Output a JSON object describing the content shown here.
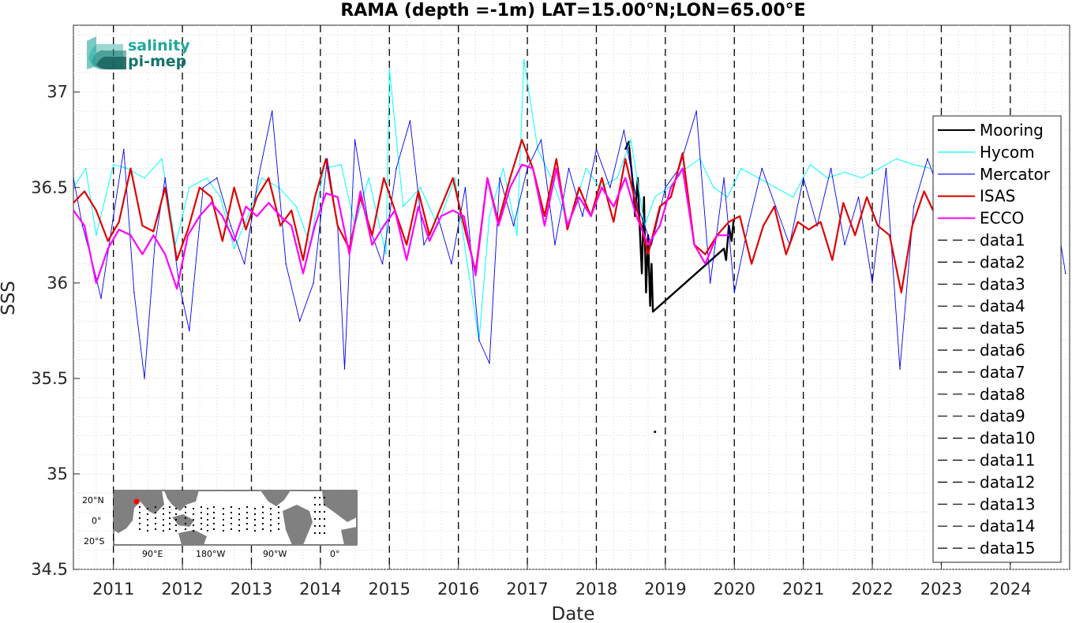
{
  "chart_data": {
    "type": "line",
    "title": "RAMA (depth =-1m) LAT=15.00°N;LON=65.00°E",
    "xlabel": "Date",
    "ylabel": "SSS",
    "xlim": [
      2010.42,
      2024.86
    ],
    "ylim": [
      34.5,
      37.35
    ],
    "grid": true,
    "x_ticks": [
      2011,
      2012,
      2013,
      2014,
      2015,
      2016,
      2017,
      2018,
      2019,
      2020,
      2021,
      2022,
      2023,
      2024
    ],
    "x_tick_labels": [
      "2011",
      "2012",
      "2013",
      "2014",
      "2015",
      "2016",
      "2017",
      "2018",
      "2019",
      "2020",
      "2021",
      "2022",
      "2023",
      "2024"
    ],
    "y_ticks": [
      34.5,
      35,
      35.5,
      36,
      36.5,
      37
    ],
    "y_tick_labels": [
      "34.5",
      "35",
      "35.5",
      "36",
      "36.5",
      "37"
    ],
    "legend_position": "right",
    "series": [
      {
        "name": "Mooring",
        "color": "#000000",
        "x": [
          2018.42,
          2018.47,
          2018.5,
          2018.53,
          2018.56,
          2018.6,
          2018.63,
          2018.66,
          2018.69,
          2018.72,
          2018.75,
          2018.78,
          2018.8,
          2018.82,
          2019.85,
          2019.88,
          2019.92,
          2019.96,
          2019.99
        ],
        "y": [
          36.7,
          36.74,
          36.62,
          36.52,
          36.35,
          36.55,
          36.28,
          36.05,
          36.45,
          35.95,
          36.25,
          35.88,
          36.1,
          35.85,
          36.18,
          36.12,
          36.3,
          36.22,
          36.33
        ]
      },
      {
        "name": "Hycom",
        "color": "#00ffff",
        "x": [
          2010.42,
          2010.6,
          2010.75,
          2011.0,
          2011.2,
          2011.45,
          2011.7,
          2011.9,
          2012.1,
          2012.35,
          2012.55,
          2012.75,
          2012.95,
          2013.15,
          2013.4,
          2013.65,
          2013.85,
          2014.05,
          2014.3,
          2014.5,
          2014.7,
          2014.95,
          2015.0,
          2015.2,
          2015.45,
          2015.7,
          2015.95,
          2016.15,
          2016.3,
          2016.45,
          2016.65,
          2016.85,
          2016.95,
          2017.15,
          2017.35,
          2017.6,
          2017.85,
          2018.05,
          2018.3,
          2018.5,
          2018.7,
          2018.85,
          2019.05,
          2019.3,
          2019.5,
          2019.7,
          2019.9,
          2020.1,
          2020.35,
          2020.6,
          2020.85,
          2021.1,
          2021.35,
          2021.6,
          2021.85,
          2022.1,
          2022.35,
          2022.6,
          2022.85
        ],
        "y": [
          36.5,
          36.6,
          36.25,
          36.62,
          36.6,
          36.55,
          36.65,
          36.2,
          36.5,
          36.55,
          36.45,
          36.18,
          36.35,
          36.55,
          36.5,
          36.4,
          36.2,
          36.6,
          36.62,
          36.3,
          36.55,
          36.15,
          37.12,
          36.4,
          36.5,
          36.3,
          36.55,
          36.05,
          35.7,
          36.35,
          36.6,
          36.25,
          37.17,
          36.7,
          36.55,
          36.3,
          36.6,
          36.5,
          36.55,
          36.75,
          36.3,
          36.45,
          36.5,
          36.6,
          36.65,
          36.5,
          36.45,
          36.6,
          36.55,
          36.5,
          36.45,
          36.62,
          36.55,
          36.58,
          36.55,
          36.6,
          36.65,
          36.62,
          36.6
        ]
      },
      {
        "name": "Mercator",
        "color": "#0000ee",
        "x": [
          2010.42,
          2010.55,
          2010.7,
          2010.82,
          2011.0,
          2011.15,
          2011.3,
          2011.45,
          2011.6,
          2011.75,
          2011.95,
          2012.1,
          2012.3,
          2012.5,
          2012.7,
          2012.9,
          2013.1,
          2013.3,
          2013.5,
          2013.7,
          2013.9,
          2014.1,
          2014.25,
          2014.35,
          2014.5,
          2014.7,
          2014.9,
          2015.1,
          2015.3,
          2015.5,
          2015.7,
          2015.9,
          2016.1,
          2016.3,
          2016.45,
          2016.6,
          2016.8,
          2017.0,
          2017.2,
          2017.4,
          2017.6,
          2017.8,
          2018.0,
          2018.2,
          2018.4,
          2018.6,
          2018.8,
          2019.0,
          2019.2,
          2019.45,
          2019.65,
          2019.85,
          2020.0,
          2020.2,
          2020.4,
          2020.6,
          2020.8,
          2021.0,
          2021.2,
          2021.4,
          2021.6,
          2021.8,
          2022.0,
          2022.2,
          2022.4,
          2022.6,
          2022.8,
          2023.0,
          2023.2,
          2023.4,
          2023.6,
          2023.8,
          2024.0,
          2024.2,
          2024.4,
          2024.6,
          2024.8
        ],
        "y": [
          36.55,
          36.3,
          36.1,
          35.92,
          36.35,
          36.7,
          35.95,
          35.5,
          36.2,
          36.55,
          36.0,
          35.75,
          36.5,
          36.55,
          36.3,
          36.1,
          36.55,
          36.9,
          36.1,
          35.8,
          36.0,
          36.65,
          36.3,
          35.55,
          36.75,
          36.3,
          36.1,
          36.6,
          36.85,
          36.2,
          36.35,
          36.1,
          36.5,
          35.7,
          35.58,
          36.55,
          36.3,
          36.6,
          36.75,
          36.2,
          36.6,
          36.35,
          36.7,
          36.5,
          36.8,
          36.4,
          36.2,
          36.5,
          36.6,
          36.9,
          36.0,
          36.55,
          35.95,
          36.3,
          36.6,
          36.4,
          36.2,
          36.55,
          36.3,
          36.6,
          36.2,
          36.45,
          36.0,
          36.6,
          35.55,
          36.4,
          36.65,
          36.45,
          36.75,
          36.6,
          36.85,
          36.45,
          36.55,
          36.3,
          36.6,
          36.5,
          36.05
        ]
      },
      {
        "name": "ISAS",
        "color": "#e00000",
        "x": [
          2010.42,
          2010.58,
          2010.75,
          2010.92,
          2011.08,
          2011.25,
          2011.42,
          2011.58,
          2011.75,
          2011.92,
          2012.08,
          2012.25,
          2012.42,
          2012.58,
          2012.75,
          2012.92,
          2013.08,
          2013.25,
          2013.42,
          2013.58,
          2013.75,
          2013.92,
          2014.08,
          2014.25,
          2014.42,
          2014.58,
          2014.75,
          2014.92,
          2015.08,
          2015.25,
          2015.42,
          2015.58,
          2015.75,
          2015.92,
          2016.08,
          2016.25,
          2016.42,
          2016.58,
          2016.75,
          2016.92,
          2017.08,
          2017.25,
          2017.42,
          2017.58,
          2017.75,
          2017.92,
          2018.08,
          2018.25,
          2018.42,
          2018.58,
          2018.75,
          2018.92,
          2019.08,
          2019.25,
          2019.42,
          2019.58,
          2019.75,
          2019.92,
          2020.08,
          2020.25,
          2020.42,
          2020.58,
          2020.75,
          2020.92,
          2021.08,
          2021.25,
          2021.42,
          2021.58,
          2021.75,
          2021.92,
          2022.08,
          2022.25,
          2022.42,
          2022.58,
          2022.75,
          2022.92
        ],
        "y": [
          36.42,
          36.48,
          36.38,
          36.22,
          36.32,
          36.6,
          36.3,
          36.27,
          36.5,
          36.12,
          36.28,
          36.5,
          36.45,
          36.22,
          36.5,
          36.28,
          36.45,
          36.55,
          36.3,
          36.38,
          36.12,
          36.45,
          36.65,
          36.3,
          36.18,
          36.45,
          36.25,
          36.55,
          36.38,
          36.2,
          36.48,
          36.25,
          36.4,
          36.55,
          36.3,
          36.06,
          36.55,
          36.32,
          36.55,
          36.75,
          36.6,
          36.35,
          36.65,
          36.28,
          36.5,
          36.35,
          36.55,
          36.32,
          36.65,
          36.4,
          36.15,
          36.4,
          36.45,
          36.68,
          36.2,
          36.15,
          36.25,
          36.32,
          36.35,
          36.1,
          36.3,
          36.4,
          36.15,
          36.32,
          36.28,
          36.32,
          36.12,
          36.42,
          36.25,
          36.45,
          36.3,
          36.25,
          35.95,
          36.3,
          36.48,
          36.35
        ]
      },
      {
        "name": "ECCO",
        "color": "#ff00ff",
        "x": [
          2010.42,
          2010.58,
          2010.75,
          2010.92,
          2011.08,
          2011.25,
          2011.42,
          2011.58,
          2011.75,
          2011.92,
          2012.08,
          2012.25,
          2012.42,
          2012.58,
          2012.75,
          2012.92,
          2013.08,
          2013.25,
          2013.42,
          2013.58,
          2013.75,
          2013.92,
          2014.08,
          2014.25,
          2014.42,
          2014.58,
          2014.75,
          2014.92,
          2015.08,
          2015.25,
          2015.42,
          2015.58,
          2015.75,
          2015.92,
          2016.08,
          2016.25,
          2016.42,
          2016.58,
          2016.75,
          2016.92,
          2017.08,
          2017.25,
          2017.42,
          2017.58,
          2017.75,
          2017.92,
          2018.08,
          2018.25,
          2018.42,
          2018.58,
          2018.75,
          2018.92,
          2019.08,
          2019.25,
          2019.42,
          2019.58,
          2019.75,
          2019.92
        ],
        "y": [
          36.38,
          36.3,
          36.0,
          36.18,
          36.28,
          36.25,
          36.15,
          36.25,
          36.15,
          35.97,
          36.25,
          36.35,
          36.42,
          36.35,
          36.22,
          36.4,
          36.35,
          36.42,
          36.35,
          36.3,
          36.05,
          36.3,
          36.47,
          36.45,
          36.15,
          36.48,
          36.2,
          36.3,
          36.38,
          36.12,
          36.4,
          36.22,
          36.35,
          36.38,
          36.35,
          36.04,
          36.55,
          36.3,
          36.5,
          36.62,
          36.6,
          36.3,
          36.6,
          36.3,
          36.45,
          36.35,
          36.5,
          36.4,
          36.55,
          36.35,
          36.2,
          36.3,
          36.5,
          36.6,
          36.2,
          36.1,
          36.25,
          36.25
        ]
      }
    ],
    "vertical_markers": {
      "x": [
        2011.0,
        2012.0,
        2013.0,
        2014.0,
        2015.0,
        2016.0,
        2017.0,
        2018.0,
        2019.0,
        2020.0,
        2021.0,
        2022.0,
        2023.0,
        2024.0,
        2024.95
      ],
      "names": [
        "data1",
        "data2",
        "data3",
        "data4",
        "data5",
        "data6",
        "data7",
        "data8",
        "data9",
        "data10",
        "data11",
        "data12",
        "data13",
        "data14",
        "data15"
      ],
      "style": "dashed",
      "color": "#000000"
    },
    "outlier_point": {
      "x": 2018.85,
      "y": 35.22
    }
  },
  "legend": {
    "items": [
      "Mooring",
      "Hycom",
      "Mercator",
      "ISAS",
      "ECCO",
      "data1",
      "data2",
      "data3",
      "data4",
      "data5",
      "data6",
      "data7",
      "data8",
      "data9",
      "data10",
      "data11",
      "data12",
      "data13",
      "data14",
      "data15"
    ]
  },
  "logo": {
    "line1": "salinity",
    "line2": "pi-mep",
    "color1": "#1fa99a",
    "color2": "#14746b"
  },
  "inset_map": {
    "lat_labels": [
      "20°N",
      "0°",
      "20°S"
    ],
    "lon_labels": [
      "90°E",
      "180°W",
      "90°W",
      "0°"
    ],
    "marker_color": "#ff0000"
  }
}
